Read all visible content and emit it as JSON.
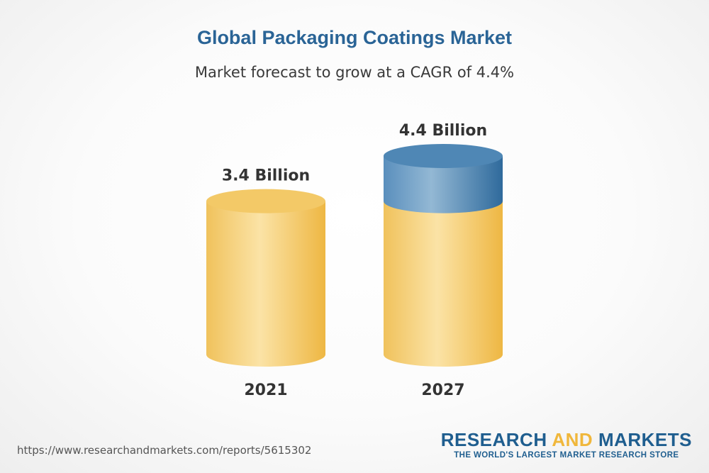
{
  "header": {
    "title": "Global Packaging Coatings Market",
    "subtitle": "Market forecast to grow at a CAGR of 4.4%"
  },
  "chart_data": {
    "type": "bar",
    "title": "Global Packaging Coatings Market",
    "subtitle": "Market forecast to grow at a CAGR of 4.4%",
    "categories": [
      "2021",
      "2027"
    ],
    "values": [
      3.4,
      4.4
    ],
    "value_labels": [
      "3.4 Billion",
      "4.4 Billion"
    ],
    "unit": "Billion",
    "style": "3d-cylinder",
    "colors": {
      "base": "#f2c35a",
      "growth": "#4f87b5"
    }
  },
  "footer": {
    "source_url": "https://www.researchandmarkets.com/reports/5615302",
    "brand_part1": "RESEARCH ",
    "brand_part2": "AND",
    "brand_part3": " MARKETS",
    "brand_tagline": "THE WORLD'S LARGEST MARKET RESEARCH STORE"
  }
}
